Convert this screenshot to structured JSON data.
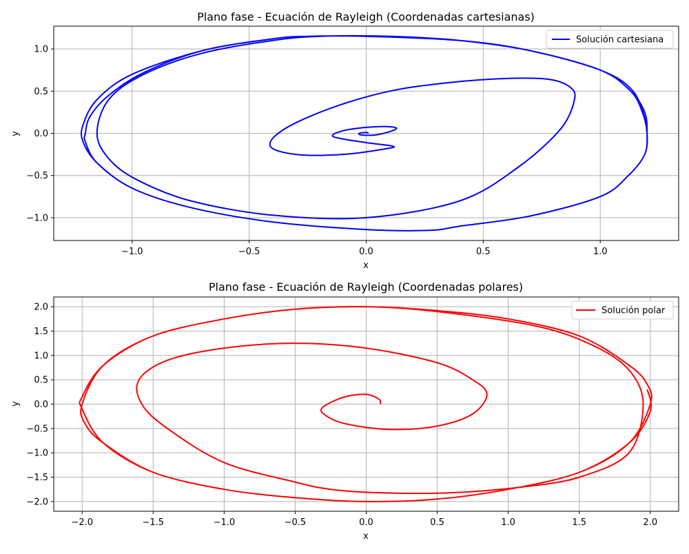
{
  "chart_data": [
    {
      "type": "line",
      "title": "Plano fase - Ecuación de Rayleigh (Coordenadas cartesianas)",
      "xlabel": "x",
      "ylabel": "y",
      "xlim": [
        -1.335,
        1.335
      ],
      "ylim": [
        -1.27,
        1.27
      ],
      "xticks": [
        -1.0,
        -0.5,
        0.0,
        0.5,
        1.0
      ],
      "xtick_labels": [
        "−1.0",
        "−0.5",
        "0.0",
        "0.5",
        "1.0"
      ],
      "yticks": [
        -1.0,
        -0.5,
        0.0,
        0.5,
        1.0
      ],
      "ytick_labels": [
        "−1.0",
        "−0.5",
        "0.0",
        "0.5",
        "1.0"
      ],
      "grid": true,
      "legend_position": "top-right",
      "series": [
        {
          "name": "Solución cartesiana",
          "color": "#0000ff",
          "x": [
            0.01,
            0.0,
            -0.03,
            -0.02,
            0.04,
            0.1,
            0.13,
            0.09,
            0.0,
            -0.1,
            -0.14,
            0.0,
            0.11,
            0.09,
            -0.1,
            -0.3,
            -0.41,
            -0.35,
            -0.15,
            0.1,
            0.35,
            0.6,
            0.78,
            0.87,
            0.89,
            0.83,
            0.65,
            0.4,
            0.0,
            -0.4,
            -0.75,
            -0.98,
            -1.1,
            -1.15,
            -1.1,
            -0.95,
            -0.7,
            -0.4,
            -0.2,
            0.1,
            0.4,
            0.7,
            1.0,
            1.13,
            1.18,
            1.2,
            1.19,
            1.12,
            1.0,
            0.7,
            0.4,
            0.27,
            0.0,
            -0.4,
            -0.75,
            -1.0,
            -1.15,
            -1.2,
            -1.2,
            -1.18,
            -1.1,
            -0.95,
            -0.7,
            -0.4,
            -0.25,
            0.0,
            0.4,
            0.7,
            1.0,
            1.13,
            1.19,
            1.2,
            1.19,
            1.12,
            1.0,
            0.7,
            0.4,
            0.27,
            0.0,
            -0.4,
            -0.75,
            -1.0,
            -1.15,
            -1.21,
            -1.21,
            -1.15,
            -1.0,
            -0.7,
            -0.4,
            -0.25,
            0.0,
            0.4,
            0.7,
            1.0,
            1.14,
            1.2
          ],
          "y": [
            0.0,
            0.01,
            0.0,
            -0.02,
            -0.02,
            0.02,
            0.06,
            0.08,
            0.07,
            0.03,
            -0.04,
            -0.11,
            -0.15,
            -0.18,
            -0.25,
            -0.25,
            -0.15,
            0.05,
            0.3,
            0.5,
            0.6,
            0.65,
            0.64,
            0.55,
            0.4,
            0.05,
            -0.4,
            -0.8,
            -1.0,
            -0.97,
            -0.8,
            -0.55,
            -0.3,
            0.0,
            0.4,
            0.7,
            0.95,
            1.1,
            1.15,
            1.15,
            1.1,
            0.98,
            0.75,
            0.5,
            0.25,
            0.0,
            -0.25,
            -0.5,
            -0.75,
            -0.98,
            -1.1,
            -1.15,
            -1.14,
            -1.05,
            -0.88,
            -0.65,
            -0.35,
            -0.1,
            0.0,
            0.2,
            0.45,
            0.72,
            0.98,
            1.12,
            1.15,
            1.15,
            1.1,
            0.98,
            0.75,
            0.5,
            0.25,
            0.0,
            -0.25,
            -0.5,
            -0.75,
            -0.98,
            -1.1,
            -1.15,
            -1.14,
            -1.05,
            -0.88,
            -0.65,
            -0.35,
            -0.1,
            0.1,
            0.4,
            0.7,
            0.98,
            1.12,
            1.15,
            1.15,
            1.1,
            0.98,
            0.75,
            0.5,
            0.1
          ]
        }
      ]
    },
    {
      "type": "line",
      "title": "Plano fase - Ecuación de Rayleigh (Coordenadas polares)",
      "xlabel": "x",
      "ylabel": "y",
      "xlim": [
        -2.2,
        2.2
      ],
      "ylim": [
        -2.2,
        2.2
      ],
      "xticks": [
        -2.0,
        -1.5,
        -1.0,
        -0.5,
        0.0,
        0.5,
        1.0,
        1.5,
        2.0
      ],
      "xtick_labels": [
        "−2.0",
        "−1.5",
        "−1.0",
        "−0.5",
        "0.0",
        "0.5",
        "1.0",
        "1.5",
        "2.0"
      ],
      "yticks": [
        -2.0,
        -1.5,
        -1.0,
        -0.5,
        0.0,
        0.5,
        1.0,
        1.5,
        2.0
      ],
      "ytick_labels": [
        "−2.0",
        "−1.5",
        "−1.0",
        "−0.5",
        "0.0",
        "0.5",
        "1.0",
        "1.5",
        "2.0"
      ],
      "grid": true,
      "legend_position": "top-right",
      "series": [
        {
          "name": "Solución polar",
          "color": "#ff0000",
          "x": [
            0.1,
            0.09,
            0.0,
            -0.15,
            -0.3,
            -0.3,
            -0.15,
            0.17,
            0.5,
            0.75,
            0.85,
            0.75,
            0.5,
            0.0,
            -0.5,
            -1.0,
            -1.4,
            -1.6,
            -1.58,
            -1.4,
            -1.0,
            -0.5,
            -0.25,
            0.1,
            0.6,
            1.1,
            1.5,
            1.85,
            1.95,
            1.85,
            1.6,
            1.2,
            0.5,
            0.0,
            -0.5,
            -1.0,
            -1.5,
            -1.85,
            -2.0,
            -1.98,
            -1.85,
            -1.5,
            -1.0,
            -0.5,
            0.0,
            0.5,
            1.0,
            1.5,
            1.85,
            2.0,
            1.98,
            1.85,
            1.5,
            1.0,
            0.5,
            0.0,
            -0.5,
            -1.0,
            -1.5,
            -1.85,
            -2.0,
            -2.0,
            -1.85,
            -1.5,
            -1.0,
            -0.5,
            0.0,
            0.5,
            1.0,
            1.5,
            1.85,
            2.0,
            1.98
          ],
          "y": [
            0.0,
            0.1,
            0.2,
            0.15,
            -0.05,
            -0.2,
            -0.4,
            -0.52,
            -0.45,
            -0.2,
            0.2,
            0.5,
            0.85,
            1.15,
            1.25,
            1.15,
            0.9,
            0.5,
            0.0,
            -0.5,
            -1.2,
            -1.6,
            -1.75,
            -1.82,
            -1.82,
            -1.7,
            -1.5,
            -1.0,
            0.0,
            0.7,
            1.2,
            1.6,
            1.9,
            2.0,
            1.95,
            1.75,
            1.4,
            0.8,
            0.0,
            -0.4,
            -0.8,
            -1.4,
            -1.75,
            -1.92,
            -2.0,
            -1.95,
            -1.75,
            -1.4,
            -0.8,
            0.0,
            0.4,
            0.8,
            1.4,
            1.75,
            1.92,
            2.0,
            1.95,
            1.75,
            1.4,
            0.8,
            0.15,
            -0.1,
            -0.8,
            -1.4,
            -1.75,
            -1.92,
            -2.0,
            -1.95,
            -1.75,
            -1.4,
            -0.8,
            -0.15,
            0.3
          ]
        }
      ]
    }
  ]
}
